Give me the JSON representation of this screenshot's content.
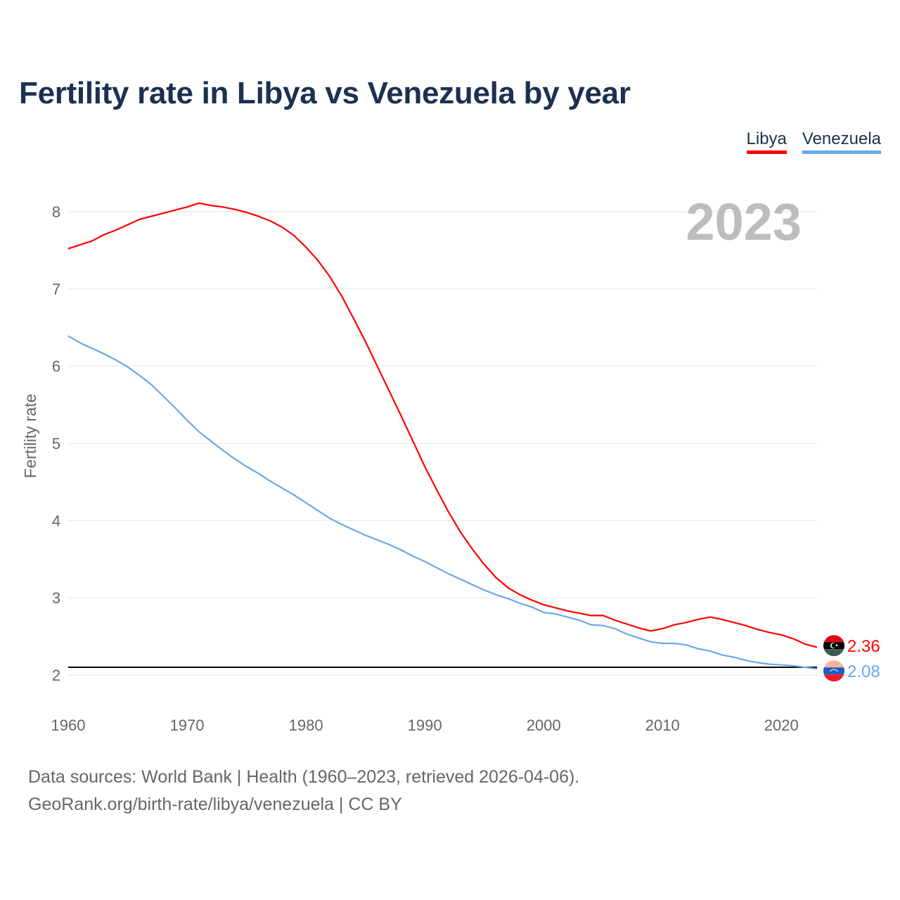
{
  "chart_data": {
    "type": "line",
    "title": "Fertility rate in Libya vs Venezuela by year",
    "xlabel": "",
    "ylabel": "Fertility rate",
    "xlim": [
      1960,
      2023
    ],
    "ylim": [
      2,
      8
    ],
    "x_ticks": [
      "1960",
      "1970",
      "1980",
      "1990",
      "2000",
      "2010",
      "2020"
    ],
    "y_ticks": [
      "2",
      "3",
      "4",
      "5",
      "6",
      "7",
      "8"
    ],
    "grid": true,
    "legend_position": "top-right",
    "year_label": "2023",
    "reference_line": 2.1,
    "x": [
      1960,
      1961,
      1962,
      1963,
      1964,
      1965,
      1966,
      1967,
      1968,
      1969,
      1970,
      1971,
      1972,
      1973,
      1974,
      1975,
      1976,
      1977,
      1978,
      1979,
      1980,
      1981,
      1982,
      1983,
      1984,
      1985,
      1986,
      1987,
      1988,
      1989,
      1990,
      1991,
      1992,
      1993,
      1994,
      1995,
      1996,
      1997,
      1998,
      1999,
      2000,
      2001,
      2002,
      2003,
      2004,
      2005,
      2006,
      2007,
      2008,
      2009,
      2010,
      2011,
      2012,
      2013,
      2014,
      2015,
      2016,
      2017,
      2018,
      2019,
      2020,
      2021,
      2022,
      2023
    ],
    "series": [
      {
        "name": "Libya",
        "color": "#ff0000",
        "end_label": "2.36",
        "values": [
          7.52,
          7.57,
          7.62,
          7.7,
          7.76,
          7.83,
          7.9,
          7.94,
          7.98,
          8.02,
          8.06,
          8.11,
          8.08,
          8.06,
          8.03,
          7.99,
          7.94,
          7.88,
          7.8,
          7.69,
          7.54,
          7.37,
          7.16,
          6.91,
          6.62,
          6.32,
          6.0,
          5.68,
          5.36,
          5.03,
          4.7,
          4.4,
          4.11,
          3.85,
          3.63,
          3.43,
          3.26,
          3.13,
          3.04,
          2.97,
          2.91,
          2.87,
          2.83,
          2.8,
          2.77,
          2.77,
          2.71,
          2.66,
          2.61,
          2.57,
          2.6,
          2.65,
          2.68,
          2.72,
          2.75,
          2.72,
          2.68,
          2.64,
          2.59,
          2.55,
          2.52,
          2.47,
          2.4,
          2.36
        ]
      },
      {
        "name": "Venezuela",
        "color": "#6aa8e8",
        "end_label": "2.08",
        "values": [
          6.39,
          6.3,
          6.23,
          6.16,
          6.08,
          5.99,
          5.88,
          5.76,
          5.61,
          5.46,
          5.3,
          5.15,
          5.03,
          4.91,
          4.8,
          4.7,
          4.61,
          4.51,
          4.42,
          4.33,
          4.23,
          4.13,
          4.03,
          3.95,
          3.88,
          3.81,
          3.75,
          3.69,
          3.62,
          3.54,
          3.47,
          3.39,
          3.31,
          3.24,
          3.17,
          3.1,
          3.04,
          2.99,
          2.93,
          2.88,
          2.81,
          2.79,
          2.75,
          2.71,
          2.65,
          2.64,
          2.6,
          2.53,
          2.48,
          2.43,
          2.41,
          2.41,
          2.39,
          2.34,
          2.31,
          2.26,
          2.23,
          2.19,
          2.16,
          2.14,
          2.13,
          2.12,
          2.1,
          2.08
        ]
      }
    ]
  },
  "footer": {
    "line1": "Data sources: World Bank | Health (1960–2023, retrieved 2026-04-06).",
    "line2": "GeoRank.org/birth-rate/libya/venezuela | CC BY"
  }
}
